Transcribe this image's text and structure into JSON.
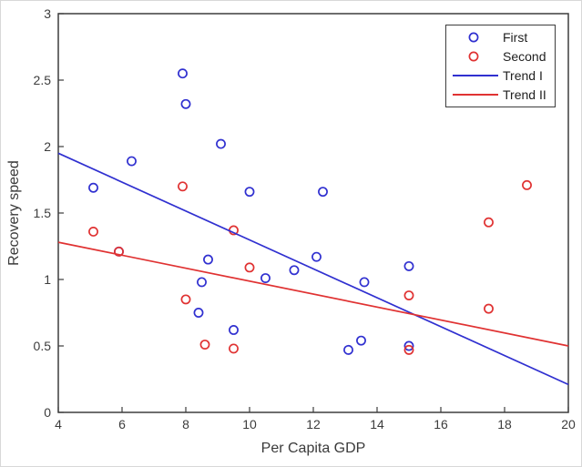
{
  "figure": {
    "background": "#ffffff",
    "frame_border_color": "#d8d8d8"
  },
  "colors": {
    "axis": "#3d3d3d",
    "tick_text": "#3c3c3c",
    "label_text": "#3a3a3a",
    "legend_text": "#1f1f1f",
    "first_series": "#3030d0",
    "second_series": "#e03232"
  },
  "legend": {
    "position": "top-right",
    "items": [
      {
        "label": "First",
        "swatch": "circle",
        "color": "#3030d0"
      },
      {
        "label": "Second",
        "swatch": "circle",
        "color": "#e03232"
      },
      {
        "label": "Trend I",
        "swatch": "line",
        "color": "#3030d0"
      },
      {
        "label": "Trend II",
        "swatch": "line",
        "color": "#e03232"
      }
    ]
  },
  "chart_data": {
    "type": "scatter",
    "title": "",
    "xlabel": "Per Capita GDP",
    "ylabel": "Recovery speed",
    "xlim": [
      4,
      20
    ],
    "ylim": [
      0,
      3
    ],
    "x_ticks": [
      4,
      6,
      8,
      10,
      12,
      14,
      16,
      18,
      20
    ],
    "x_tick_labels": [
      "4",
      "6",
      "8",
      "10",
      "12",
      "14",
      "16",
      "18",
      "20"
    ],
    "y_ticks": [
      0,
      0.5,
      1,
      1.5,
      2,
      2.5,
      3
    ],
    "y_tick_labels": [
      "0",
      "0.5",
      "1",
      "1.5",
      "2",
      "2.5",
      "3"
    ],
    "grid": false,
    "legend_position": "top-right",
    "series": [
      {
        "name": "First",
        "type": "scatter",
        "marker": "open-circle",
        "color": "#3030d0",
        "points": [
          [
            5.1,
            1.69
          ],
          [
            5.9,
            1.21
          ],
          [
            6.3,
            1.89
          ],
          [
            7.9,
            2.55
          ],
          [
            8.0,
            2.32
          ],
          [
            8.4,
            0.75
          ],
          [
            8.5,
            0.98
          ],
          [
            8.7,
            1.15
          ],
          [
            9.1,
            2.02
          ],
          [
            9.5,
            0.62
          ],
          [
            10.0,
            1.66
          ],
          [
            10.5,
            1.01
          ],
          [
            11.4,
            1.07
          ],
          [
            12.1,
            1.17
          ],
          [
            12.3,
            1.66
          ],
          [
            13.1,
            0.47
          ],
          [
            13.5,
            0.54
          ],
          [
            13.6,
            0.98
          ],
          [
            15.0,
            1.1
          ],
          [
            15.0,
            0.5
          ]
        ]
      },
      {
        "name": "Second",
        "type": "scatter",
        "marker": "open-circle",
        "color": "#e03232",
        "points": [
          [
            5.1,
            1.36
          ],
          [
            5.9,
            1.21
          ],
          [
            7.9,
            1.7
          ],
          [
            8.0,
            0.85
          ],
          [
            8.6,
            0.51
          ],
          [
            9.5,
            1.37
          ],
          [
            9.5,
            0.48
          ],
          [
            10.0,
            1.09
          ],
          [
            15.0,
            0.88
          ],
          [
            15.0,
            0.47
          ],
          [
            17.5,
            1.43
          ],
          [
            17.5,
            0.78
          ],
          [
            18.7,
            1.71
          ]
        ]
      },
      {
        "name": "Trend I",
        "type": "line",
        "color": "#3030d0",
        "points": [
          [
            4,
            1.95
          ],
          [
            20,
            0.21
          ]
        ]
      },
      {
        "name": "Trend II",
        "type": "line",
        "color": "#e03232",
        "points": [
          [
            4,
            1.28
          ],
          [
            20,
            0.5
          ]
        ]
      }
    ]
  }
}
